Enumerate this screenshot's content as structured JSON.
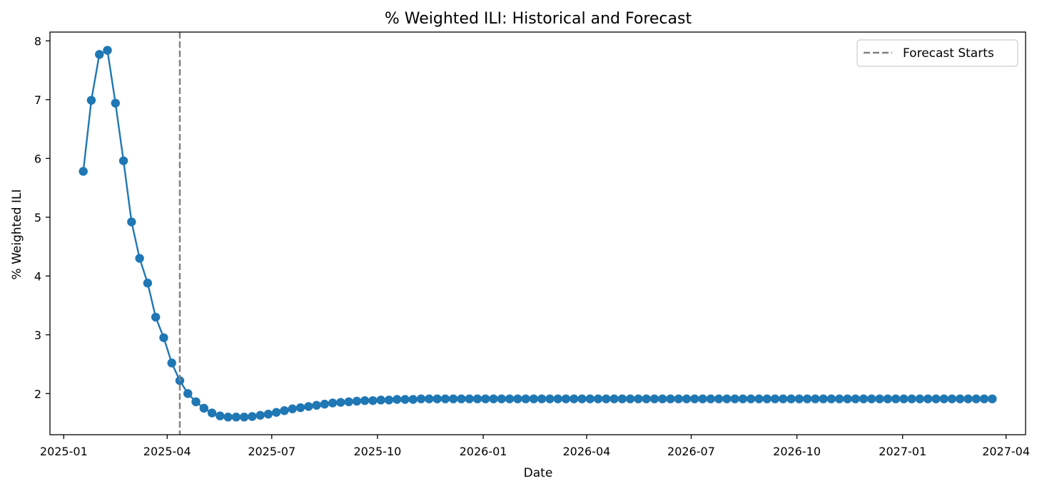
{
  "chart_data": {
    "type": "line",
    "title": "% Weighted ILI: Historical and Forecast",
    "xlabel": "Date",
    "ylabel": "% Weighted ILI",
    "x_range": [
      "2024-12-20",
      "2027-04-18"
    ],
    "ylim": [
      1.3,
      8.15
    ],
    "x_ticks": [
      "2025-01",
      "2025-04",
      "2025-07",
      "2025-10",
      "2026-01",
      "2026-04",
      "2026-07",
      "2026-10",
      "2027-01",
      "2027-04"
    ],
    "y_ticks": [
      2,
      3,
      4,
      5,
      6,
      7,
      8
    ],
    "grid": false,
    "legend_position": "top-right",
    "colors": {
      "series": "#1f77b4",
      "forecast_line": "#808080",
      "axes": "#000000"
    },
    "series": [
      {
        "x_start": "2025-01-18",
        "x_step_days": 7,
        "values": [
          5.78,
          6.99,
          7.77,
          7.84,
          6.94,
          5.96,
          4.92,
          4.3,
          3.88,
          3.3,
          2.95,
          2.52,
          2.22,
          2.0,
          1.86,
          1.75,
          1.67,
          1.62,
          1.6,
          1.6,
          1.6,
          1.61,
          1.63,
          1.65,
          1.68,
          1.71,
          1.74,
          1.76,
          1.78,
          1.8,
          1.82,
          1.84,
          1.85,
          1.86,
          1.87,
          1.88,
          1.88,
          1.89,
          1.89,
          1.9,
          1.9,
          1.9,
          1.91,
          1.91,
          1.91,
          1.91,
          1.91,
          1.91,
          1.91,
          1.91,
          1.91,
          1.91,
          1.91,
          1.91,
          1.91,
          1.91,
          1.91,
          1.91,
          1.91,
          1.91,
          1.91,
          1.91,
          1.91,
          1.91,
          1.91,
          1.91,
          1.91,
          1.91,
          1.91,
          1.91,
          1.91,
          1.91,
          1.91,
          1.91,
          1.91,
          1.91,
          1.91,
          1.91,
          1.91,
          1.91,
          1.91,
          1.91,
          1.91,
          1.91,
          1.91,
          1.91,
          1.91,
          1.91,
          1.91,
          1.91,
          1.91,
          1.91,
          1.91,
          1.91,
          1.91,
          1.91,
          1.91,
          1.91,
          1.91,
          1.91,
          1.91,
          1.91,
          1.91,
          1.91,
          1.91,
          1.91,
          1.91,
          1.91,
          1.91,
          1.91,
          1.91,
          1.91,
          1.91,
          1.91
        ]
      }
    ],
    "forecast_start": "2025-04-12",
    "legend": [
      {
        "label": "Forecast Starts",
        "style": "dashed"
      }
    ]
  }
}
